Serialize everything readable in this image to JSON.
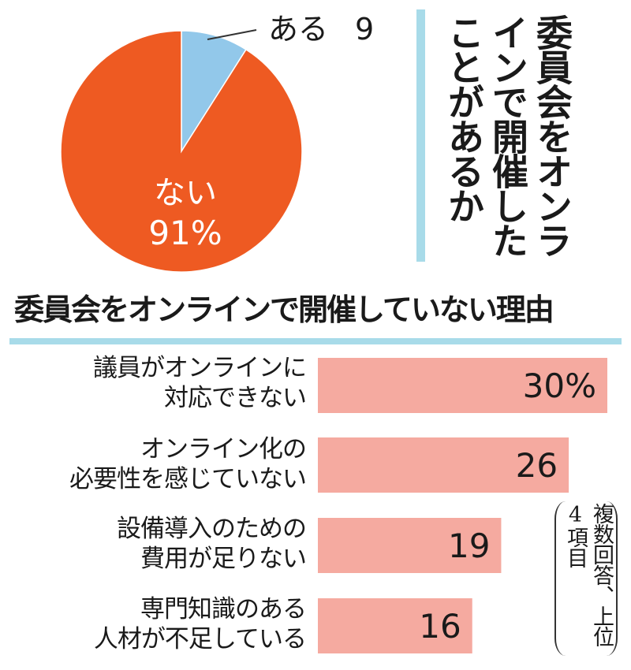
{
  "pie_title": "委員会をオンラインで開催したことがあるか",
  "bar_title": "委員会をオンラインで開催していない理由",
  "note": "複数回答、上位4項目",
  "colors": {
    "pie_aru": "#92c8ea",
    "pie_nai": "#ee5a22",
    "bar": "#f5aaa0",
    "accent_rule": "#a8dbe9"
  },
  "chart_data": [
    {
      "type": "pie",
      "slices": [
        {
          "label": "ある",
          "display": "9",
          "value": 9
        },
        {
          "label": "ない",
          "display": "91%",
          "value": 91
        }
      ]
    },
    {
      "type": "bar",
      "orientation": "horizontal",
      "unit": "%",
      "categories": [
        {
          "line1": "議員がオンラインに",
          "line2": "対応できない"
        },
        {
          "line1": "オンライン化の",
          "line2": "必要性を感じていない"
        },
        {
          "line1": "設備導入のための",
          "line2": "費用が足りない"
        },
        {
          "line1": "専門知識のある",
          "line2": "人材が不足している"
        }
      ],
      "values": [
        30,
        26,
        19,
        16
      ],
      "value_labels": [
        "30%",
        "26",
        "19",
        "16"
      ]
    }
  ]
}
